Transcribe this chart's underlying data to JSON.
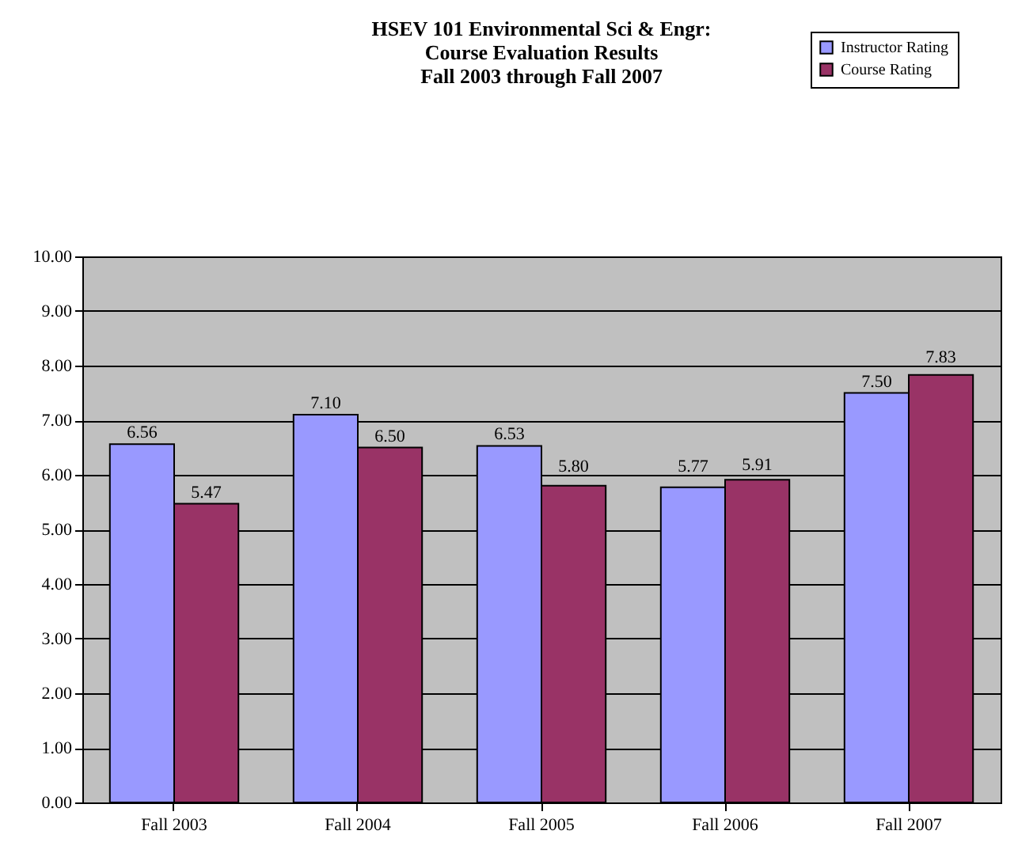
{
  "chart_data": {
    "type": "bar",
    "title": "HSEV 101 Environmental Sci & Engr:\nCourse Evaluation Results\nFall 2003 through Fall 2007",
    "categories": [
      "Fall 2003",
      "Fall 2004",
      "Fall 2005",
      "Fall 2006",
      "Fall 2007"
    ],
    "series": [
      {
        "name": "Instructor Rating",
        "color": "#9999ff",
        "values": [
          6.56,
          7.1,
          6.53,
          5.77,
          7.5
        ]
      },
      {
        "name": "Course Rating",
        "color": "#993366",
        "values": [
          5.47,
          6.5,
          5.8,
          5.91,
          7.83
        ]
      }
    ],
    "ylim": [
      0,
      10
    ],
    "yticks": [
      {
        "value": 0,
        "label": "0.00"
      },
      {
        "value": 1,
        "label": "1.00"
      },
      {
        "value": 2,
        "label": "2.00"
      },
      {
        "value": 3,
        "label": "3.00"
      },
      {
        "value": 4,
        "label": "4.00"
      },
      {
        "value": 5,
        "label": "5.00"
      },
      {
        "value": 6,
        "label": "6.00"
      },
      {
        "value": 7,
        "label": "7.00"
      },
      {
        "value": 8,
        "label": "8.00"
      },
      {
        "value": 9,
        "label": "9.00"
      },
      {
        "value": 10,
        "label": "10.00"
      }
    ],
    "value_labels": [
      [
        "6.56",
        "7.10",
        "6.53",
        "5.77",
        "7.50"
      ],
      [
        "5.47",
        "6.50",
        "5.80",
        "5.91",
        "7.83"
      ]
    ],
    "grid": "y",
    "legend": "top right"
  }
}
